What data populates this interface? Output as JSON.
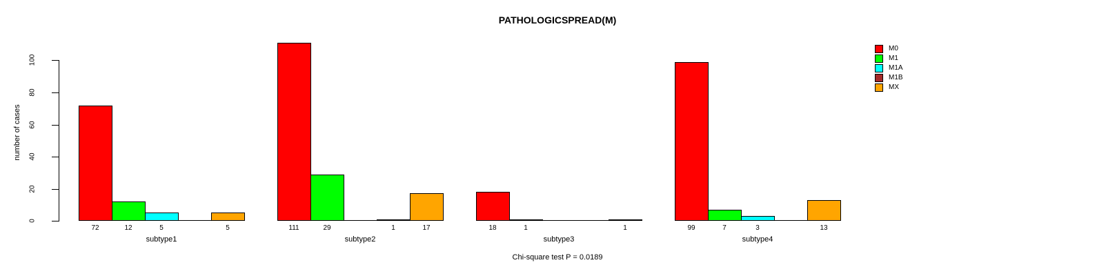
{
  "chart_data": {
    "type": "bar",
    "title": "PATHOLOGICSPREAD(M)",
    "ylabel": "number of cases",
    "xlabel": "",
    "categories": [
      "subtype1",
      "subtype2",
      "subtype3",
      "subtype4"
    ],
    "series": [
      {
        "name": "M0",
        "color": "#FF0000",
        "values": [
          72,
          111,
          18,
          99
        ]
      },
      {
        "name": "M1",
        "color": "#00FF00",
        "values": [
          12,
          29,
          1,
          7
        ]
      },
      {
        "name": "M1A",
        "color": "#00FFFF",
        "values": [
          5,
          0,
          0,
          3
        ]
      },
      {
        "name": "M1B",
        "color": "#A52A2A",
        "values": [
          0,
          1,
          0,
          0
        ]
      },
      {
        "name": "MX",
        "color": "#FFA500",
        "values": [
          5,
          17,
          1,
          13
        ]
      }
    ],
    "yticks": [
      0,
      20,
      40,
      60,
      80,
      100
    ],
    "ylim": [
      0,
      115
    ],
    "grid": false,
    "legend_position": "top-right",
    "bar_value_labels": "shown centered below each bar, omitted for zero values",
    "annotation": "Chi-square test P = 0.0189"
  }
}
